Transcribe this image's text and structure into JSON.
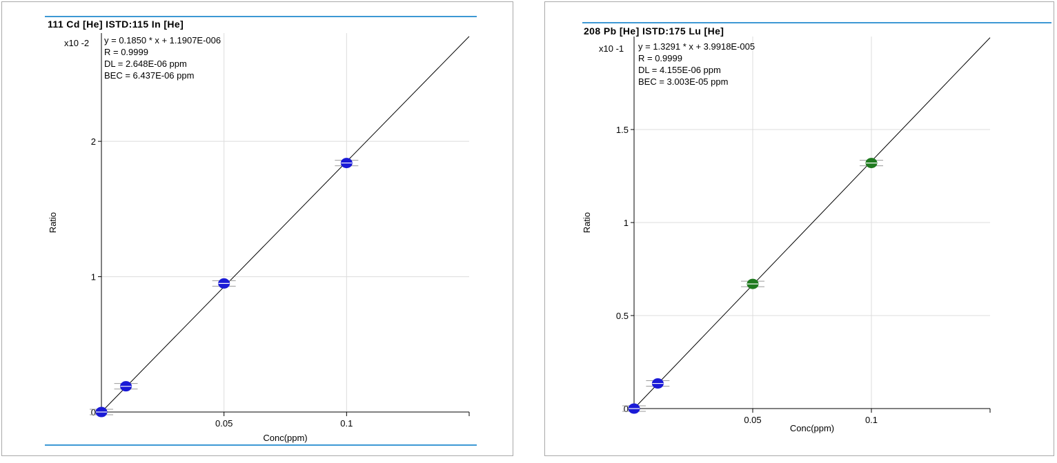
{
  "panels": [
    {
      "title": "111 Cd [He] ISTD:115 In [He]",
      "scale_label": "x10 -2",
      "equation": "y = 0.1850 * x  + 1.1907E-006",
      "r": "R =  0.9999",
      "dl": "DL = 2.648E-06 ppm",
      "bec": "BEC = 6.437E-06 ppm",
      "xlabel": "Conc(ppm)",
      "ylabel": "Ratio"
    },
    {
      "title": "208 Pb [He] ISTD:175 Lu [He]",
      "scale_label": "x10 -1",
      "equation": "y = 1.3291 * x  + 3.9918E-005",
      "r": "R =  0.9999",
      "dl": "DL = 4.155E-06 ppm",
      "bec": "BEC = 3.003E-05 ppm",
      "xlabel": "Conc(ppm)",
      "ylabel": "Ratio"
    }
  ],
  "chart_data": [
    {
      "type": "scatter",
      "title": "111 Cd [He] ISTD:115 In [He]",
      "xlabel": "Conc(ppm)",
      "ylabel": "Ratio",
      "y_scale_label": "x10 -2",
      "xlim": [
        0,
        0.15
      ],
      "ylim": [
        0,
        2.8
      ],
      "x_ticks": [
        0.05,
        0.1
      ],
      "x_tick_labels": [
        "0.05",
        "0.1"
      ],
      "y_ticks": [
        0,
        1,
        2
      ],
      "y_tick_labels": [
        "0",
        "1",
        "2"
      ],
      "grid": true,
      "fit": {
        "slope": 18.5,
        "intercept": 0.00012
      },
      "series": [
        {
          "x": [
            0,
            0.01,
            0.05,
            0.1
          ],
          "y": [
            0.0,
            0.19,
            0.95,
            1.84
          ],
          "color": "#1a1ad6"
        }
      ]
    },
    {
      "type": "scatter",
      "title": "208 Pb [He] ISTD:175 Lu [He]",
      "xlabel": "Conc(ppm)",
      "ylabel": "Ratio",
      "y_scale_label": "x10 -1",
      "xlim": [
        0,
        0.15
      ],
      "ylim": [
        0,
        2.0
      ],
      "x_ticks": [
        0.05,
        0.1
      ],
      "x_tick_labels": [
        "0.05",
        "0.1"
      ],
      "y_ticks": [
        0,
        0.5,
        1,
        1.5
      ],
      "y_tick_labels": [
        "0",
        "0.5",
        "1",
        "1.5"
      ],
      "grid": true,
      "fit": {
        "slope": 13.291,
        "intercept": 0.0004
      },
      "series": [
        {
          "x": [
            0,
            0.01
          ],
          "y": [
            0.0,
            0.135
          ],
          "color": "#1a1ad6"
        },
        {
          "x": [
            0.05,
            0.1
          ],
          "y": [
            0.67,
            1.32
          ],
          "color": "#1f7a1f"
        }
      ]
    }
  ]
}
